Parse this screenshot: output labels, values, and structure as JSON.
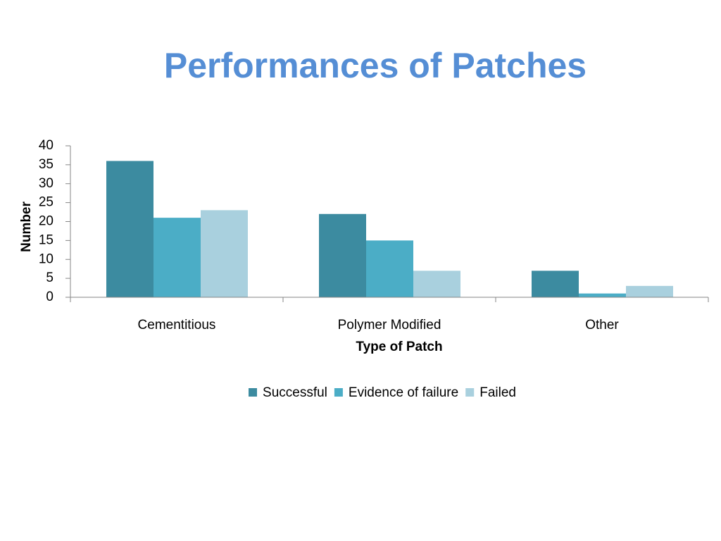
{
  "chart_data": {
    "type": "bar",
    "title": "Performances of Patches",
    "x_label": "Type of Patch",
    "y_label": "Number",
    "categories": [
      "Cementitious",
      "Polymer Modified",
      "Other"
    ],
    "series": [
      {
        "name": "Successful",
        "color": "#3c8ba0",
        "values": [
          36,
          22,
          7
        ]
      },
      {
        "name": "Evidence of failure",
        "color": "#4badc6",
        "values": [
          21,
          15,
          1
        ]
      },
      {
        "name": "Failed",
        "color": "#a9d0de",
        "values": [
          23,
          7,
          3
        ]
      }
    ],
    "ylim": [
      0,
      40
    ],
    "yticks": [
      0,
      5,
      10,
      15,
      20,
      25,
      30,
      35,
      40
    ],
    "grid": false,
    "legend": "bottom"
  }
}
